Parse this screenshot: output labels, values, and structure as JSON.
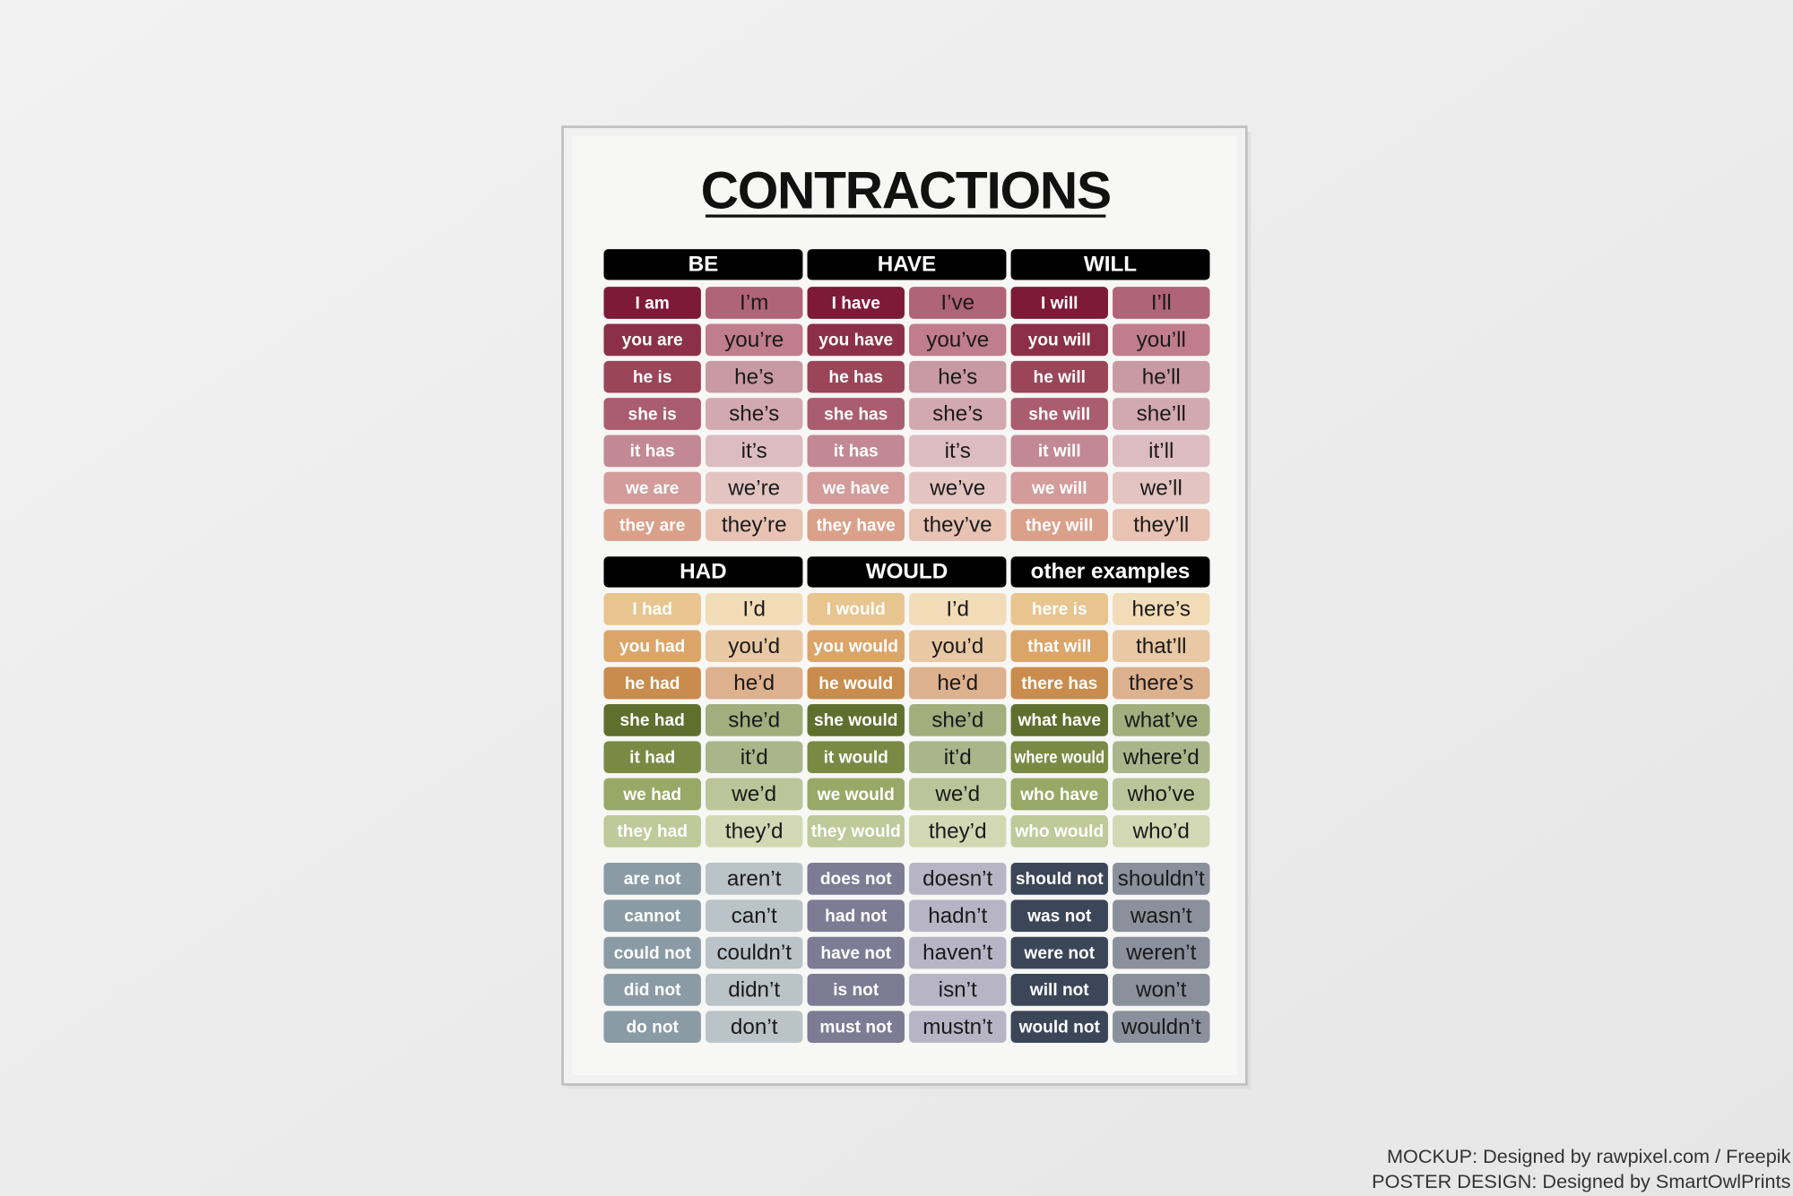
{
  "poster": {
    "title": "CONTRACTIONS",
    "blocks": [
      {
        "headers": [
          "BE",
          "HAVE",
          "WILL"
        ],
        "rows": [
          [
            "I am",
            "I’m",
            "I have",
            "I’ve",
            "I will",
            "I’ll"
          ],
          [
            "you are",
            "you’re",
            "you have",
            "you’ve",
            "you will",
            "you’ll"
          ],
          [
            "he is",
            "he’s",
            "he has",
            "he’s",
            "he will",
            "he’ll"
          ],
          [
            "she is",
            "she’s",
            "she has",
            "she’s",
            "she will",
            "she’ll"
          ],
          [
            "it has",
            "it’s",
            "it has",
            "it’s",
            "it will",
            "it’ll"
          ],
          [
            "we are",
            "we’re",
            "we have",
            "we’ve",
            "we will",
            "we’ll"
          ],
          [
            "they are",
            "they’re",
            "they have",
            "they’ve",
            "they will",
            "they’ll"
          ]
        ]
      },
      {
        "headers": [
          "HAD",
          "WOULD",
          "other examples"
        ],
        "rows": [
          [
            "I had",
            "I’d",
            "I would",
            "I’d",
            "here is",
            "here’s"
          ],
          [
            "you had",
            "you’d",
            "you would",
            "you’d",
            "that will",
            "that’ll"
          ],
          [
            "he had",
            "he’d",
            "he would",
            "he’d",
            "there has",
            "there’s"
          ],
          [
            "she had",
            "she’d",
            "she would",
            "she’d",
            "what have",
            "what’ve"
          ],
          [
            "it had",
            "it’d",
            "it would",
            "it’d",
            "where would",
            "where’d"
          ],
          [
            "we had",
            "we’d",
            "we would",
            "we’d",
            "who have",
            "who’ve"
          ],
          [
            "they had",
            "they’d",
            "they would",
            "they’d",
            "who would",
            "who’d"
          ]
        ]
      },
      {
        "rows": [
          [
            "are not",
            "aren’t",
            "does not",
            "doesn’t",
            "should not",
            "shouldn’t"
          ],
          [
            "cannot",
            "can’t",
            "had not",
            "hadn’t",
            "was not",
            "wasn’t"
          ],
          [
            "could not",
            "couldn’t",
            "have not",
            "haven’t",
            "were not",
            "weren’t"
          ],
          [
            "did not",
            "didn’t",
            "is not",
            "isn’t",
            "will not",
            "won’t"
          ],
          [
            "do not",
            "don’t",
            "must not",
            "mustn’t",
            "would not",
            "wouldn’t"
          ]
        ]
      }
    ]
  },
  "credits": [
    "MOCKUP: Designed by rawpixel.com / Freepik",
    "POSTER DESIGN: Designed by SmartOwlPrints"
  ]
}
